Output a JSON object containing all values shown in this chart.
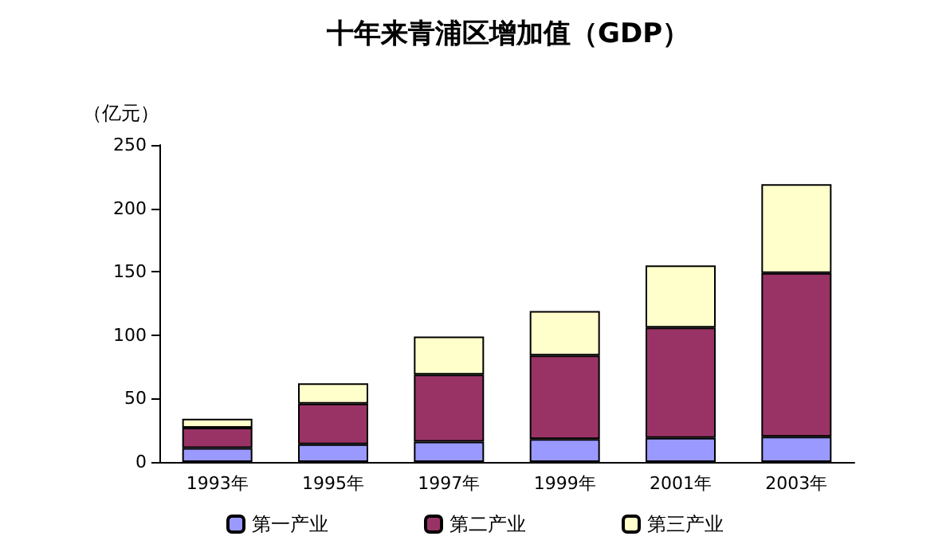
{
  "chart_data": {
    "type": "bar",
    "title": "十年来青浦区增加值（GDP）",
    "ylabel": "（亿元）",
    "categories": [
      "1993年",
      "1995年",
      "1997年",
      "1999年",
      "2001年",
      "2003年"
    ],
    "series": [
      {
        "name": "第一产业",
        "color": "#9999ff",
        "values": [
          11,
          14,
          16,
          18,
          19,
          20
        ]
      },
      {
        "name": "第二产业",
        "color": "#993366",
        "values": [
          16,
          32,
          53,
          66,
          87,
          129
        ]
      },
      {
        "name": "第三产业",
        "color": "#ffffcc",
        "values": [
          7,
          16,
          30,
          35,
          49,
          70
        ]
      }
    ],
    "stacked": true,
    "ylim": [
      0,
      250
    ],
    "yticks": [
      0,
      50,
      100,
      150,
      200,
      250
    ],
    "grid": false,
    "legend": "bottom"
  }
}
